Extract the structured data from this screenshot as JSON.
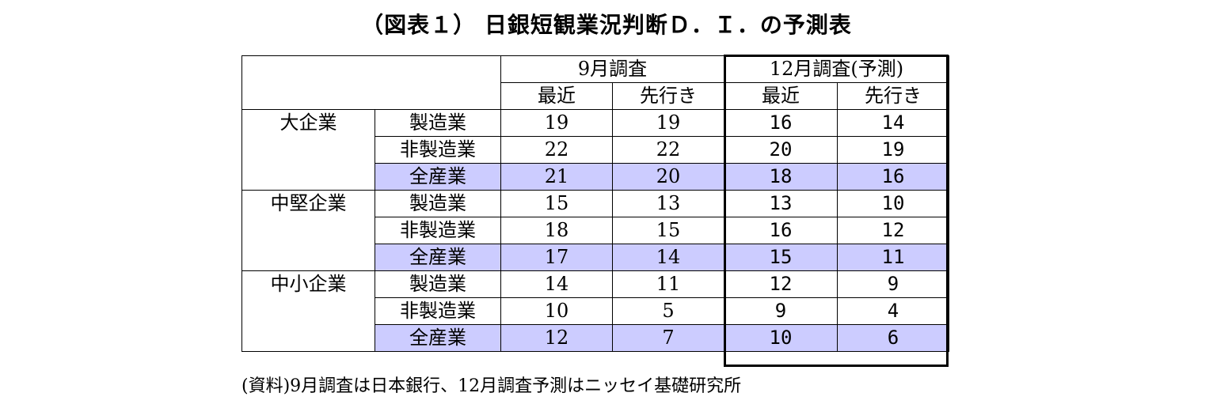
{
  "title": "（図表１） 日銀短観業況判断Ｄ．Ｉ．の予測表",
  "header": {
    "survey_sep": "9月調査",
    "survey_dec": "12月調査(予測)",
    "recent": "最近",
    "forecast": "先行き"
  },
  "groups": [
    {
      "name": "大企業",
      "rows": [
        {
          "industry": "製造業",
          "values": [
            "19",
            "19",
            "16",
            "14"
          ],
          "highlight": false
        },
        {
          "industry": "非製造業",
          "values": [
            "22",
            "22",
            "20",
            "19"
          ],
          "highlight": false
        },
        {
          "industry": "全産業",
          "values": [
            "21",
            "20",
            "18",
            "16"
          ],
          "highlight": true
        }
      ]
    },
    {
      "name": "中堅企業",
      "rows": [
        {
          "industry": "製造業",
          "values": [
            "15",
            "13",
            "13",
            "10"
          ],
          "highlight": false
        },
        {
          "industry": "非製造業",
          "values": [
            "18",
            "15",
            "16",
            "12"
          ],
          "highlight": false
        },
        {
          "industry": "全産業",
          "values": [
            "17",
            "14",
            "15",
            "11"
          ],
          "highlight": true
        }
      ]
    },
    {
      "name": "中小企業",
      "rows": [
        {
          "industry": "製造業",
          "values": [
            "14",
            "11",
            "12",
            "9"
          ],
          "highlight": false
        },
        {
          "industry": "非製造業",
          "values": [
            "10",
            "5",
            "9",
            "4"
          ],
          "highlight": false
        },
        {
          "industry": "全産業",
          "values": [
            "12",
            "7",
            "10",
            "6"
          ],
          "highlight": true
        }
      ]
    }
  ],
  "source_note": "(資料)9月調査は日本銀行、12月調査予測はニッセイ基礎研究所",
  "colors": {
    "highlight_fill": "#ccccff",
    "border": "#000000"
  }
}
